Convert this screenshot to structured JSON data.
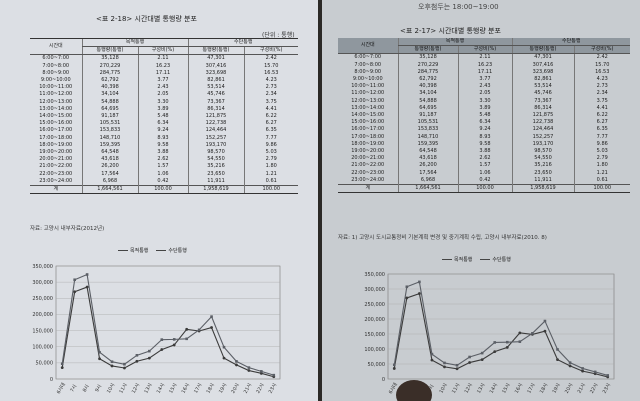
{
  "left": {
    "title": "<표 2-18> 시간대별 통행량 분포",
    "unit": "(단위 : 통행)",
    "headers": {
      "col_time": "시간대",
      "group_a": "목적통행",
      "group_b": "수단통행",
      "count": "통행량(통행)",
      "ratio": "구성비(%)"
    },
    "rows": [
      [
        "6:00~7:00",
        "35,128",
        "2.11",
        "47,301",
        "2.42"
      ],
      [
        "7:00~8:00",
        "270,229",
        "16.23",
        "307,416",
        "15.70"
      ],
      [
        "8:00~9:00",
        "284,775",
        "17.11",
        "323,698",
        "16.53"
      ],
      [
        "9:00~10:00",
        "62,792",
        "3.77",
        "82,861",
        "4.23"
      ],
      [
        "10:00~11:00",
        "40,398",
        "2.43",
        "53,514",
        "2.73"
      ],
      [
        "11:00~12:00",
        "34,104",
        "2.05",
        "45,746",
        "2.34"
      ],
      [
        "12:00~13:00",
        "54,888",
        "3.30",
        "73,367",
        "3.75"
      ],
      [
        "13:00~14:00",
        "64,695",
        "3.89",
        "86,314",
        "4.41"
      ],
      [
        "14:00~15:00",
        "91,187",
        "5.48",
        "121,875",
        "6.22"
      ],
      [
        "15:00~16:00",
        "105,531",
        "6.34",
        "122,738",
        "6.27"
      ],
      [
        "16:00~17:00",
        "153,833",
        "9.24",
        "124,464",
        "6.35"
      ],
      [
        "17:00~18:00",
        "148,710",
        "8.93",
        "152,257",
        "7.77"
      ],
      [
        "18:00~19:00",
        "159,395",
        "9.58",
        "193,170",
        "9.86"
      ],
      [
        "19:00~20:00",
        "64,548",
        "3.88",
        "98,570",
        "5.03"
      ],
      [
        "20:00~21:00",
        "43,618",
        "2.62",
        "54,550",
        "2.79"
      ],
      [
        "21:00~22:00",
        "26,200",
        "1.57",
        "35,216",
        "1.80"
      ],
      [
        "22:00~23:00",
        "17,564",
        "1.06",
        "23,650",
        "1.21"
      ],
      [
        "23:00~24:00",
        "6,968",
        "0.42",
        "11,911",
        "0.61"
      ]
    ],
    "total": [
      "계",
      "1,664,561",
      "100.00",
      "1,958,619",
      "100.00"
    ],
    "source": "자료: 고양시 내부자료(2012년)",
    "legend": [
      "목적통행",
      "수단통행"
    ]
  },
  "right": {
    "top_text": "오후첨두는 18:00~19:00",
    "title": "<표 2-17> 시간대별 통행량 분포",
    "headers": {
      "col_time": "시간대",
      "group_a": "목적통행",
      "group_b": "수단통행",
      "count": "통행량(통행)",
      "ratio": "구성비(%)"
    },
    "rows": [
      [
        "6:00~7:00",
        "35,128",
        "2.11",
        "47,301",
        "2.42"
      ],
      [
        "7:00~8:00",
        "270,229",
        "16.23",
        "307,416",
        "15.70"
      ],
      [
        "8:00~9:00",
        "284,775",
        "17.11",
        "323,698",
        "16.53"
      ],
      [
        "9:00~10:00",
        "62,792",
        "3.77",
        "82,861",
        "4.23"
      ],
      [
        "10:00~11:00",
        "40,398",
        "2.43",
        "53,514",
        "2.73"
      ],
      [
        "11:00~12:00",
        "34,104",
        "2.05",
        "45,746",
        "2.34"
      ],
      [
        "12:00~13:00",
        "54,888",
        "3.30",
        "73,367",
        "3.75"
      ],
      [
        "13:00~14:00",
        "64,695",
        "3.89",
        "86,314",
        "4.41"
      ],
      [
        "14:00~15:00",
        "91,187",
        "5.48",
        "121,875",
        "6.22"
      ],
      [
        "15:00~16:00",
        "105,531",
        "6.34",
        "122,738",
        "6.27"
      ],
      [
        "16:00~17:00",
        "153,833",
        "9.24",
        "124,464",
        "6.35"
      ],
      [
        "17:00~18:00",
        "148,710",
        "8.93",
        "152,257",
        "7.77"
      ],
      [
        "18:00~19:00",
        "159,395",
        "9.58",
        "193,170",
        "9.86"
      ],
      [
        "19:00~20:00",
        "64,548",
        "3.88",
        "98,570",
        "5.03"
      ],
      [
        "20:00~21:00",
        "43,618",
        "2.62",
        "54,550",
        "2.79"
      ],
      [
        "21:00~22:00",
        "26,200",
        "1.57",
        "35,216",
        "1.80"
      ],
      [
        "22:00~23:00",
        "17,564",
        "1.06",
        "23,650",
        "1.21"
      ],
      [
        "23:00~24:00",
        "6,968",
        "0.42",
        "11,911",
        "0.61"
      ]
    ],
    "total": [
      "계",
      "1,664,561",
      "100.00",
      "1,958,619",
      "100.00"
    ],
    "source": "자료: 1) 고양시 도시교통정비 기본계획 변경 및 중기계획 수립, 고양시 내부자료(2010. 8)",
    "legend": [
      "목적통행",
      "수단통행"
    ]
  },
  "chart_data": [
    {
      "type": "line",
      "categories": [
        "6시대",
        "7시",
        "8시",
        "9시",
        "10시",
        "11시",
        "12시",
        "13시",
        "14시",
        "15시",
        "16시",
        "17시",
        "18시",
        "19시",
        "20시",
        "21시",
        "22시",
        "23시"
      ],
      "series": [
        {
          "name": "목적통행",
          "values": [
            35128,
            270229,
            284775,
            62792,
            40398,
            34104,
            54888,
            64695,
            91187,
            105531,
            153833,
            148710,
            159395,
            64548,
            43618,
            26200,
            17564,
            6968
          ]
        },
        {
          "name": "수단통행",
          "values": [
            47301,
            307416,
            323698,
            82861,
            53514,
            45746,
            73367,
            86314,
            121875,
            122738,
            124464,
            152257,
            193170,
            98570,
            54550,
            35216,
            23650,
            11911
          ]
        }
      ],
      "ylim": [
        0,
        350000
      ],
      "yticks": [
        "350,000",
        "300,000",
        "250,000",
        "200,000",
        "150,000",
        "100,000",
        "50,000",
        "0"
      ],
      "grid": true,
      "legend": "top-center"
    },
    {
      "type": "line",
      "categories": [
        "6시대",
        "7시",
        "8시",
        "9시",
        "10시",
        "11시",
        "12시",
        "13시",
        "14시",
        "15시",
        "16시",
        "17시",
        "18시",
        "19시",
        "20시",
        "21시",
        "22시",
        "23시"
      ],
      "series": [
        {
          "name": "목적통행",
          "values": [
            35128,
            270229,
            284775,
            62792,
            40398,
            34104,
            54888,
            64695,
            91187,
            105531,
            153833,
            148710,
            159395,
            64548,
            43618,
            26200,
            17564,
            6968
          ]
        },
        {
          "name": "수단통행",
          "values": [
            47301,
            307416,
            323698,
            82861,
            53514,
            45746,
            73367,
            86314,
            121875,
            122738,
            124464,
            152257,
            193170,
            98570,
            54550,
            35216,
            23650,
            11911
          ]
        }
      ],
      "ylim": [
        0,
        350000
      ],
      "yticks": [
        "350,000",
        "300,000",
        "250,000",
        "200,000",
        "150,000",
        "100,000",
        "50,000",
        "0"
      ],
      "grid": true,
      "legend": "top-center"
    }
  ]
}
